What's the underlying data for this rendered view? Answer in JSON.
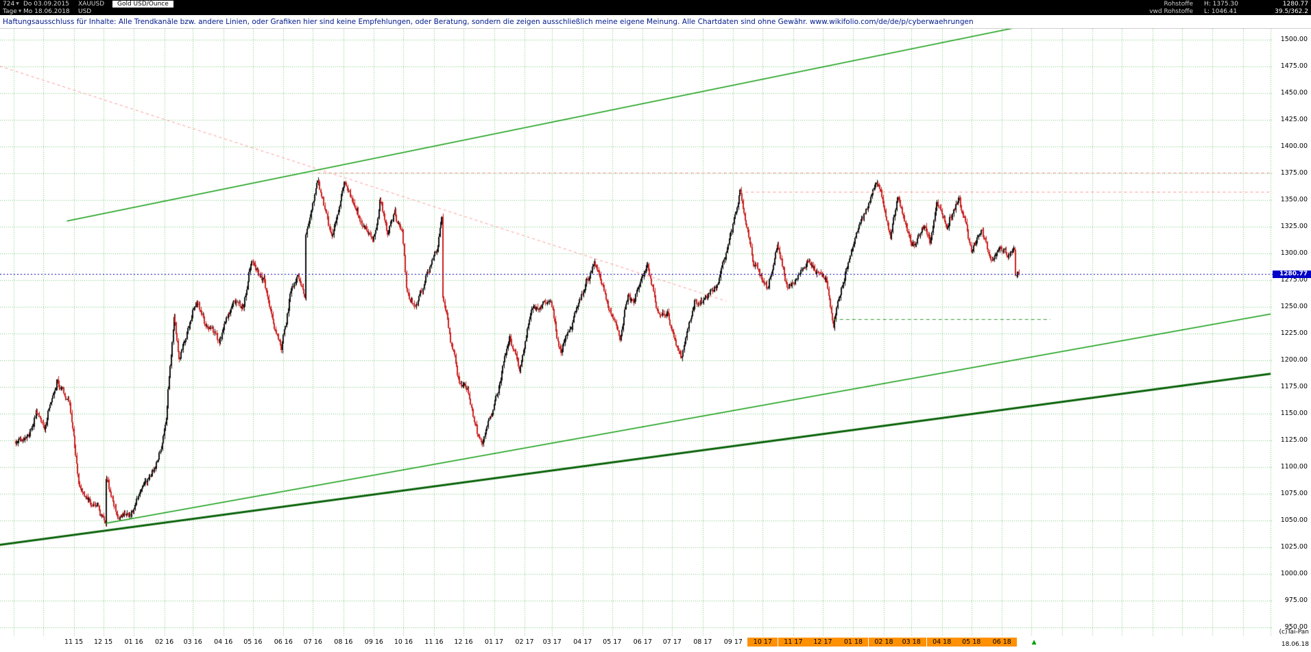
{
  "header": {
    "chart_id": "724",
    "dropdown_icon": "▼",
    "start_date": "Do 03.09.2015",
    "symbol": "XAUUSD",
    "instrument": "Gold USD/Ounce",
    "category": "Rohstoffe",
    "high": "H: 1375.30",
    "last": "1280.77",
    "timeframe": "Tage",
    "end_date": "Mo 18.06.2018",
    "currency": "USD",
    "source": "vwd Rohstoffe",
    "low": "L: 1046.41",
    "change": "39.5/362.2"
  },
  "disclaimer": "Haftungsausschluss für Inhalte: Alle Trendkanäle bzw. andere Linien, oder Grafiken hier sind keine Empfehlungen, oder Beratung, sondern die zeigen ausschließlich meine eigene Meinung. Alle Chartdaten sind ohne Gewähr.  www.wikifolio.com/de/de/p/cyberwaehrungen",
  "footer": {
    "copyright": "(c)Tai-Pan",
    "date": "18.06.18"
  },
  "chart_data": {
    "type": "candlestick",
    "title": "XAUUSD Gold USD/Ounce, Tage (daily candles)",
    "last_price": 1280.77,
    "last_price_label": "1280.77",
    "period_high": 1375.3,
    "period_low": 1046.41,
    "ylim": [
      942,
      1510
    ],
    "y_tick_labels": [
      "1500.00",
      "1475.00",
      "1450.00",
      "1425.00",
      "1400.00",
      "1375.00",
      "1350.00",
      "1325.00",
      "1300.00",
      "1275.00",
      "1250.00",
      "1225.00",
      "1200.00",
      "1175.00",
      "1150.00",
      "1125.00",
      "1100.00",
      "1075.00",
      "1050.00",
      "1025.00",
      "1000.00",
      "975.00",
      "950.00"
    ],
    "x_start": "2015-09-03",
    "x_end": "2018-06-18",
    "x_axis_right_extension_end": "2019-03-01",
    "x_tick_labels": [
      "11 15",
      "12 15",
      "01 16",
      "02 16",
      "03 16",
      "04 16",
      "05 16",
      "06 16",
      "07 16",
      "08 16",
      "09 16",
      "10 16",
      "11 16",
      "12 16",
      "01 17",
      "02 17",
      "03 17",
      "04 17",
      "05 17",
      "06 17",
      "07 17",
      "08 17",
      "09 17",
      "10 17",
      "11 17",
      "12 17",
      "01 18",
      "02 18",
      "03 18",
      "04 18",
      "05 18",
      "06 18"
    ],
    "x_highlighted_tick_labels": [
      "10 17",
      "11 17",
      "12 17",
      "01 18",
      "02 18",
      "03 18",
      "04 18",
      "05 18",
      "06 18"
    ],
    "grid": {
      "horizontal_step": 25,
      "vertical": "monthly",
      "style": "dotted",
      "color": "#79c879"
    },
    "series": [
      {
        "name": "XAUUSD daily close (condensed swing points read from chart)",
        "points": [
          [
            "2015-09-03",
            1124
          ],
          [
            "2015-09-17",
            1132
          ],
          [
            "2015-09-24",
            1154
          ],
          [
            "2015-10-02",
            1138
          ],
          [
            "2015-10-15",
            1184
          ],
          [
            "2015-10-28",
            1156
          ],
          [
            "2015-11-06",
            1089
          ],
          [
            "2015-11-18",
            1069
          ],
          [
            "2015-11-27",
            1057
          ],
          [
            "2015-12-03",
            1047
          ],
          [
            "2015-12-04",
            1086
          ],
          [
            "2015-12-17",
            1051
          ],
          [
            "2015-12-31",
            1061
          ],
          [
            "2016-01-21",
            1096
          ],
          [
            "2016-01-28",
            1116
          ],
          [
            "2016-02-03",
            1141
          ],
          [
            "2016-02-11",
            1247
          ],
          [
            "2016-02-16",
            1201
          ],
          [
            "2016-03-04",
            1259
          ],
          [
            "2016-03-15",
            1231
          ],
          [
            "2016-03-28",
            1216
          ],
          [
            "2016-04-12",
            1255
          ],
          [
            "2016-04-21",
            1248
          ],
          [
            "2016-04-29",
            1293
          ],
          [
            "2016-05-13",
            1273
          ],
          [
            "2016-05-30",
            1205
          ],
          [
            "2016-06-08",
            1262
          ],
          [
            "2016-06-16",
            1278
          ],
          [
            "2016-06-23",
            1256
          ],
          [
            "2016-06-24",
            1315
          ],
          [
            "2016-07-06",
            1366
          ],
          [
            "2016-07-20",
            1315
          ],
          [
            "2016-08-02",
            1364
          ],
          [
            "2016-08-15",
            1339
          ],
          [
            "2016-08-31",
            1309
          ],
          [
            "2016-09-07",
            1349
          ],
          [
            "2016-09-15",
            1312
          ],
          [
            "2016-09-22",
            1337
          ],
          [
            "2016-09-30",
            1316
          ],
          [
            "2016-10-04",
            1268
          ],
          [
            "2016-10-14",
            1252
          ],
          [
            "2016-11-04",
            1304
          ],
          [
            "2016-11-09",
            1337
          ],
          [
            "2016-11-10",
            1258
          ],
          [
            "2016-11-25",
            1184
          ],
          [
            "2016-12-05",
            1170
          ],
          [
            "2016-12-15",
            1128
          ],
          [
            "2016-12-20",
            1125
          ],
          [
            "2016-12-30",
            1152
          ],
          [
            "2017-01-17",
            1217
          ],
          [
            "2017-01-27",
            1191
          ],
          [
            "2017-02-08",
            1241
          ],
          [
            "2017-02-27",
            1257
          ],
          [
            "2017-03-10",
            1204
          ],
          [
            "2017-03-27",
            1254
          ],
          [
            "2017-04-13",
            1288
          ],
          [
            "2017-05-09",
            1216
          ],
          [
            "2017-05-17",
            1260
          ],
          [
            "2017-05-23",
            1251
          ],
          [
            "2017-06-06",
            1294
          ],
          [
            "2017-06-15",
            1254
          ],
          [
            "2017-06-26",
            1244
          ],
          [
            "2017-07-10",
            1207
          ],
          [
            "2017-07-24",
            1254
          ],
          [
            "2017-08-04",
            1258
          ],
          [
            "2017-08-15",
            1270
          ],
          [
            "2017-08-29",
            1313
          ],
          [
            "2017-09-08",
            1357
          ],
          [
            "2017-09-21",
            1291
          ],
          [
            "2017-10-06",
            1268
          ],
          [
            "2017-10-16",
            1304
          ],
          [
            "2017-10-27",
            1267
          ],
          [
            "2017-11-17",
            1294
          ],
          [
            "2017-12-04",
            1274
          ],
          [
            "2017-12-12",
            1236
          ],
          [
            "2017-12-29",
            1303
          ],
          [
            "2018-01-15",
            1339
          ],
          [
            "2018-01-25",
            1366
          ],
          [
            "2018-02-08",
            1309
          ],
          [
            "2018-02-15",
            1353
          ],
          [
            "2018-03-01",
            1305
          ],
          [
            "2018-03-14",
            1325
          ],
          [
            "2018-03-20",
            1307
          ],
          [
            "2018-03-27",
            1353
          ],
          [
            "2018-04-06",
            1328
          ],
          [
            "2018-04-18",
            1353
          ],
          [
            "2018-05-01",
            1304
          ],
          [
            "2018-05-11",
            1322
          ],
          [
            "2018-05-21",
            1292
          ],
          [
            "2018-05-31",
            1305
          ],
          [
            "2018-06-08",
            1299
          ],
          [
            "2018-06-14",
            1302
          ],
          [
            "2018-06-15",
            1279
          ],
          [
            "2018-06-18",
            1280.77
          ]
        ]
      }
    ],
    "overlay_lines": [
      {
        "name": "downtrend-resistance",
        "type": "segment",
        "style": "dashed",
        "dash": [
          4,
          4
        ],
        "color": "#ff9898",
        "width": 1,
        "from": [
          "2015-08-18",
          1475
        ],
        "to": [
          "2017-08-25",
          1255
        ]
      },
      {
        "name": "horizontal-resistance-1375",
        "type": "horizontal",
        "style": "dashed",
        "dash": [
          4,
          4
        ],
        "color": "#ff9898",
        "width": 1,
        "price": 1375.3,
        "from": "2016-07-06",
        "extend_right": true
      },
      {
        "name": "horizontal-resistance-1357",
        "type": "horizontal",
        "style": "dashed",
        "dash": [
          4,
          4
        ],
        "color": "#ff9898",
        "width": 1,
        "price": 1357.5,
        "from": "2017-09-08",
        "extend_right": true
      },
      {
        "name": "horizontal-support-1238",
        "type": "horizontal",
        "style": "dashed",
        "dash": [
          5,
          4
        ],
        "color": "#2f9e2f",
        "width": 1,
        "price": 1238,
        "from": "2017-12-12",
        "to": "2018-07-20"
      },
      {
        "name": "uptrend-channel-top",
        "type": "segment",
        "style": "solid",
        "color": "#0f9b0f",
        "width": 1.5,
        "from": [
          "2015-10-25",
          1330
        ],
        "to": [
          "2018-06-20",
          1512
        ]
      },
      {
        "name": "uptrend-support-inner",
        "type": "segment",
        "style": "solid",
        "color": "#0f9b0f",
        "width": 1.5,
        "from": [
          "2015-12-03",
          1047
        ],
        "to": [
          "2019-03-01",
          1243
        ]
      },
      {
        "name": "uptrend-support-major",
        "type": "segment",
        "style": "solid",
        "color": "#076107",
        "width": 3,
        "from": [
          "2015-08-18",
          1027
        ],
        "to": [
          "2019-03-01",
          1187
        ]
      },
      {
        "name": "current-price-line",
        "type": "horizontal",
        "style": "dashed",
        "dash": [
          2,
          3
        ],
        "color": "#0000b4",
        "width": 1,
        "price": 1280.77,
        "from": "2015-08-18",
        "extend_right": true
      }
    ],
    "markers": [
      {
        "name": "green-up-triangle",
        "symbol": "▲",
        "date": "2018-07-04",
        "location": "date-axis",
        "color": "#00a000"
      }
    ],
    "colors": {
      "candle_up": "#101010",
      "candle_down": "#cc2020",
      "background": "#ffffff",
      "grid": "#79c879",
      "current_price_line": "#0000b4",
      "price_tag_bg": "#0000c8",
      "price_tag_text": "#ffffff",
      "axis_text": "#000000",
      "highlight_label_bg": "#ff9000"
    }
  }
}
